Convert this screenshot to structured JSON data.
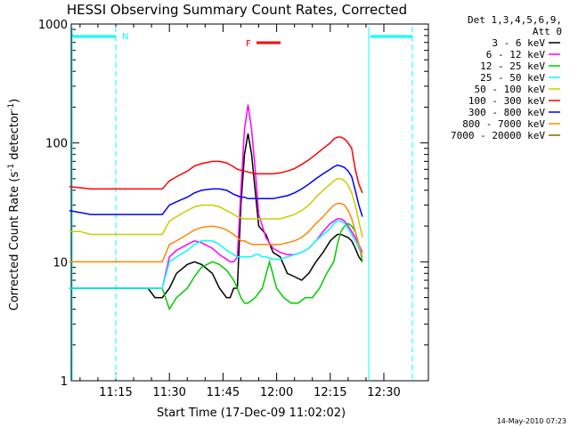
{
  "chart_data": {
    "type": "line",
    "title": "HESSI Observing Summary Count Rates, Corrected",
    "xlabel": "Start Time (17-Dec-09 11:02:02)",
    "ylabel_main": "Corrected Count Rate (s",
    "ylabel_sup1": "-1",
    "ylabel_mid": " detector",
    "ylabel_sup2": "-1",
    "ylabel_end": ")",
    "y_scale": "log",
    "ylim": [
      1,
      1000
    ],
    "xlim_minutes": [
      0,
      82
    ],
    "x_ticks": [
      {
        "minutes": 13,
        "label": "11:15"
      },
      {
        "minutes": 28,
        "label": "11:30"
      },
      {
        "minutes": 43,
        "label": "11:45"
      },
      {
        "minutes": 58,
        "label": "12:00"
      },
      {
        "minutes": 73,
        "label": "12:15"
      },
      {
        "minutes": 88,
        "label": "12:30"
      }
    ],
    "y_ticks": [
      {
        "value": 1,
        "label": "1"
      },
      {
        "value": 10,
        "label": "10"
      },
      {
        "value": 100,
        "label": "100"
      },
      {
        "value": 1000,
        "label": "1000"
      }
    ],
    "legend_header": [
      "Det 1,3,4,5,6,9,",
      "Att 0"
    ],
    "annotations": {
      "night_label": "N",
      "flare_label": "F",
      "footer_date": "14-May-2010 07:23"
    },
    "series": [
      {
        "name": "3 - 6 keV",
        "color": "#000000",
        "x": [
          0,
          3,
          5,
          7,
          8,
          9,
          10,
          12,
          14,
          17,
          20,
          22,
          24,
          26,
          28,
          30,
          33,
          35,
          37,
          40,
          42,
          44,
          45,
          46,
          47,
          48,
          49,
          50,
          51,
          52,
          53,
          55,
          57,
          59,
          61,
          63,
          65,
          67,
          69,
          71,
          73,
          74,
          75,
          76,
          77,
          78,
          79,
          80,
          81,
          82
        ],
        "y": [
          6,
          6,
          6,
          6,
          6,
          6,
          6,
          6,
          6,
          6,
          6,
          6,
          5,
          5,
          6,
          8,
          9.5,
          10,
          9.5,
          8,
          6,
          5,
          5,
          6,
          6,
          30,
          80,
          120,
          80,
          40,
          20,
          17,
          12,
          11,
          8,
          7.5,
          7,
          8,
          10,
          12,
          15,
          16,
          17,
          17,
          16.5,
          16,
          15,
          13,
          11,
          10
        ]
      },
      {
        "name": "6 - 12 keV",
        "color": "#ff00ff",
        "x": [
          0,
          3,
          6,
          8,
          10,
          12,
          14,
          17,
          20,
          22,
          24,
          26,
          28,
          30,
          33,
          35,
          37,
          40,
          42,
          44,
          45,
          46,
          47,
          48,
          49,
          50,
          51,
          52,
          53,
          55,
          57,
          59,
          61,
          63,
          65,
          67,
          69,
          71,
          73,
          74,
          75,
          76,
          77,
          78,
          79,
          80,
          81,
          82
        ],
        "y": [
          6,
          6,
          6,
          6,
          6,
          6,
          6,
          6,
          6,
          6,
          6,
          6,
          11,
          12.5,
          14,
          15,
          14.5,
          13,
          11.5,
          10.5,
          10,
          10,
          11,
          40,
          130,
          210,
          130,
          60,
          25,
          16,
          13,
          12,
          11.5,
          11.5,
          12,
          13,
          15,
          18,
          21,
          22,
          23,
          23,
          22,
          20,
          18,
          16,
          14,
          12
        ]
      },
      {
        "name": "12 - 25 keV",
        "color": "#00cc00",
        "x": [
          0,
          3,
          6,
          8,
          10,
          12,
          14,
          17,
          20,
          22,
          24,
          26,
          28,
          30,
          33,
          35,
          37,
          40,
          42,
          44,
          46,
          47,
          48,
          49,
          50,
          52,
          54,
          56,
          58,
          60,
          62,
          64,
          66,
          68,
          70,
          72,
          74,
          75,
          76,
          77,
          78,
          79,
          80,
          81,
          82
        ],
        "y": [
          6,
          6,
          6,
          6,
          6,
          6,
          6,
          6,
          6,
          6,
          6,
          6,
          4,
          5,
          6,
          7.5,
          9,
          10,
          9.5,
          8.5,
          7,
          6,
          5,
          4.5,
          4.5,
          5,
          6,
          10,
          6,
          5,
          4.5,
          4.5,
          5,
          5,
          6,
          8,
          10,
          14,
          18,
          20,
          21,
          20,
          18,
          14,
          10
        ]
      },
      {
        "name": "25 - 50 keV",
        "color": "#00ffff",
        "x": [
          0,
          3,
          6,
          8,
          10,
          12,
          14,
          17,
          20,
          22,
          24,
          26,
          28,
          30,
          33,
          35,
          37,
          40,
          42,
          44,
          46,
          47,
          48,
          49,
          50,
          51,
          52,
          53,
          54,
          55,
          57,
          59,
          61,
          63,
          65,
          67,
          69,
          71,
          73,
          74,
          75,
          76,
          77,
          78,
          79,
          80,
          81,
          82
        ],
        "y": [
          6,
          6,
          6,
          6,
          6,
          6,
          6,
          6,
          6,
          6,
          6,
          6,
          10,
          11,
          12.5,
          14,
          15,
          15,
          14,
          12.5,
          11.5,
          11,
          11,
          11,
          11,
          11,
          11.5,
          11.5,
          11,
          11,
          10.5,
          10.5,
          11,
          11.5,
          12,
          13,
          15,
          17,
          19,
          21,
          22,
          22,
          21,
          19,
          17,
          15,
          13,
          11
        ]
      },
      {
        "name": "50 - 100 keV",
        "color": "#cccc00",
        "x": [
          0,
          3,
          6,
          8,
          10,
          12,
          14,
          17,
          20,
          22,
          24,
          26,
          28,
          30,
          33,
          35,
          37,
          40,
          42,
          44,
          46,
          47,
          48,
          49,
          50,
          51,
          52,
          53,
          54,
          55,
          57,
          59,
          61,
          63,
          65,
          67,
          69,
          71,
          73,
          74,
          75,
          76,
          77,
          78,
          79,
          80,
          81,
          82
        ],
        "y": [
          18,
          18,
          17,
          17,
          17,
          17,
          17,
          17,
          17,
          17,
          17,
          17,
          22,
          24,
          27,
          29,
          30,
          30,
          29,
          27,
          25,
          24,
          23.5,
          23,
          23,
          23,
          23,
          23,
          23,
          23,
          23,
          23,
          24,
          25,
          27,
          30,
          35,
          40,
          45,
          48,
          50,
          50,
          48,
          44,
          38,
          30,
          22,
          16
        ]
      },
      {
        "name": "100 - 300 keV",
        "color": "#ff0000",
        "x": [
          0,
          3,
          6,
          8,
          10,
          12,
          14,
          17,
          20,
          22,
          24,
          26,
          28,
          30,
          33,
          35,
          37,
          40,
          42,
          44,
          46,
          47,
          48,
          49,
          50,
          51,
          52,
          53,
          54,
          55,
          57,
          59,
          61,
          63,
          65,
          67,
          69,
          71,
          73,
          74,
          75,
          76,
          77,
          78,
          79,
          80,
          81,
          82
        ],
        "y": [
          43,
          42,
          41,
          41,
          41,
          41,
          41,
          41,
          41,
          41,
          41,
          41,
          48,
          52,
          58,
          64,
          67,
          70,
          70,
          68,
          63,
          60,
          59,
          58,
          57,
          56,
          55,
          55,
          55,
          55,
          55,
          56,
          58,
          61,
          66,
          72,
          80,
          90,
          100,
          108,
          112,
          112,
          108,
          100,
          90,
          60,
          45,
          38
        ]
      },
      {
        "name": "300 - 800 keV",
        "color": "#0000ff",
        "x": [
          0,
          3,
          6,
          8,
          10,
          12,
          14,
          17,
          20,
          22,
          24,
          26,
          28,
          30,
          33,
          35,
          37,
          40,
          42,
          44,
          46,
          47,
          48,
          49,
          50,
          51,
          52,
          53,
          54,
          55,
          57,
          59,
          61,
          63,
          65,
          67,
          69,
          71,
          73,
          74,
          75,
          76,
          77,
          78,
          79,
          80,
          81,
          82
        ],
        "y": [
          27,
          26,
          25,
          25,
          25,
          25,
          25,
          25,
          25,
          25,
          25,
          25,
          30,
          32,
          35,
          38,
          40,
          41,
          41,
          40,
          37,
          36,
          35,
          35,
          34,
          34,
          34,
          34,
          34,
          34,
          34,
          35,
          36,
          38,
          41,
          45,
          50,
          55,
          60,
          63,
          65,
          64,
          62,
          58,
          52,
          40,
          30,
          24
        ]
      },
      {
        "name": "800 - 7000 keV",
        "color": "#ff8800",
        "x": [
          0,
          3,
          6,
          8,
          10,
          12,
          14,
          17,
          20,
          22,
          24,
          26,
          28,
          30,
          33,
          35,
          37,
          40,
          42,
          44,
          46,
          47,
          48,
          49,
          50,
          51,
          52,
          53,
          54,
          55,
          57,
          59,
          61,
          63,
          65,
          67,
          69,
          71,
          73,
          74,
          75,
          76,
          77,
          78,
          79,
          80,
          81,
          82
        ],
        "y": [
          10,
          10,
          10,
          10,
          10,
          10,
          10,
          10,
          10,
          10,
          10,
          10,
          14,
          15,
          17,
          18.5,
          19.5,
          20,
          19.5,
          18.5,
          17,
          16,
          15,
          15,
          14.5,
          14,
          14,
          14,
          14,
          14,
          14,
          14,
          14.5,
          15,
          16,
          18,
          21,
          24,
          28,
          30,
          31,
          31,
          30,
          27,
          23,
          18,
          14,
          11
        ]
      },
      {
        "name": "7000 - 20000 keV",
        "color": "#886600",
        "x": [],
        "y": []
      }
    ],
    "grid": false,
    "legend_position": "top-right"
  }
}
